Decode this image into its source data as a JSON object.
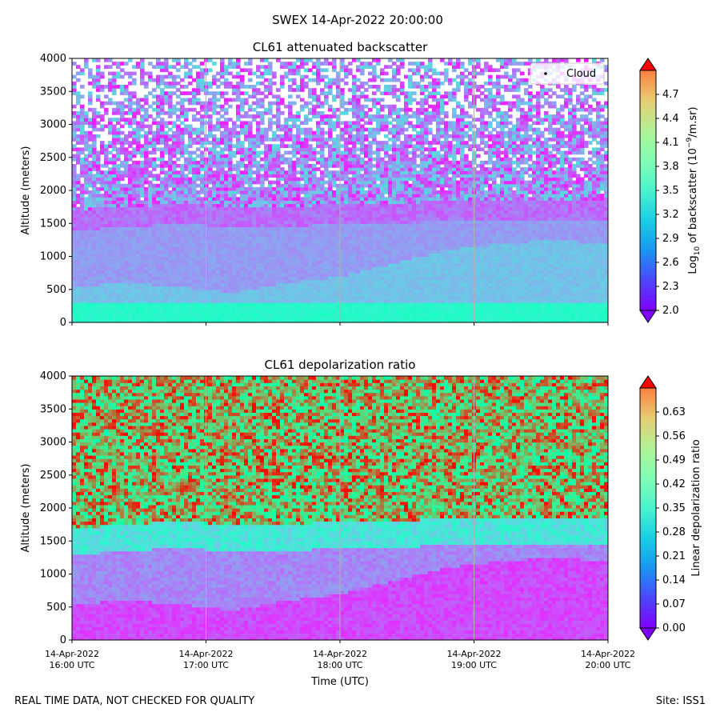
{
  "suptitle": "SWEX 14-Apr-2022 20:00:00",
  "footer": {
    "left": "REAL TIME DATA, NOT CHECKED FOR QUALITY",
    "right": "Site: ISS1"
  },
  "x_axis": {
    "label": "Time (UTC)",
    "ticks": [
      {
        "date": "14-Apr-2022",
        "time": "16:00 UTC",
        "hour": 16
      },
      {
        "date": "14-Apr-2022",
        "time": "17:00 UTC",
        "hour": 17
      },
      {
        "date": "14-Apr-2022",
        "time": "18:00 UTC",
        "hour": 18
      },
      {
        "date": "14-Apr-2022",
        "time": "19:00 UTC",
        "hour": 19
      },
      {
        "date": "14-Apr-2022",
        "time": "20:00 UTC",
        "hour": 20
      }
    ],
    "xlim": [
      16,
      20
    ]
  },
  "chart_data": [
    {
      "type": "heatmap",
      "title": "CL61 attenuated backscatter",
      "ylabel": "Altitude (meters)",
      "ylim": [
        0,
        4000
      ],
      "yticks": [
        0,
        500,
        1000,
        1500,
        2000,
        2500,
        3000,
        3500,
        4000
      ],
      "colorbar": {
        "label_prefix": "Log",
        "label_sub": "10",
        "label_mid": " of backscatter (10",
        "label_sup": "−9",
        "label_suffix": "/m.sr)",
        "range": [
          2.0,
          5.0
        ],
        "ticks": [
          "2.0",
          "2.3",
          "2.6",
          "2.9",
          "3.2",
          "3.5",
          "3.8",
          "4.1",
          "4.4",
          "4.7"
        ],
        "colormap": "rainbow"
      },
      "legend": {
        "label": "Cloud",
        "position": "upper right"
      },
      "description_layers": {
        "boundary_layer_top_m": [
          550,
          600,
          550,
          450,
          600,
          700,
          900,
          1100,
          1200,
          1250,
          1200
        ],
        "residual_layer_top_m": [
          1700,
          1750,
          1800,
          1750,
          1750,
          1800,
          1800,
          1850,
          1850,
          1850,
          1850
        ]
      }
    },
    {
      "type": "heatmap",
      "title": "CL61 depolarization ratio",
      "ylabel": "Altitude (meters)",
      "ylim": [
        0,
        4000
      ],
      "yticks": [
        0,
        500,
        1000,
        1500,
        2000,
        2500,
        3000,
        3500,
        4000
      ],
      "colorbar": {
        "label": "Linear depolarization ratio",
        "range": [
          0.0,
          0.7
        ],
        "ticks": [
          "0.00",
          "0.07",
          "0.14",
          "0.21",
          "0.28",
          "0.35",
          "0.42",
          "0.49",
          "0.56",
          "0.63"
        ],
        "colormap": "rainbow"
      }
    }
  ]
}
